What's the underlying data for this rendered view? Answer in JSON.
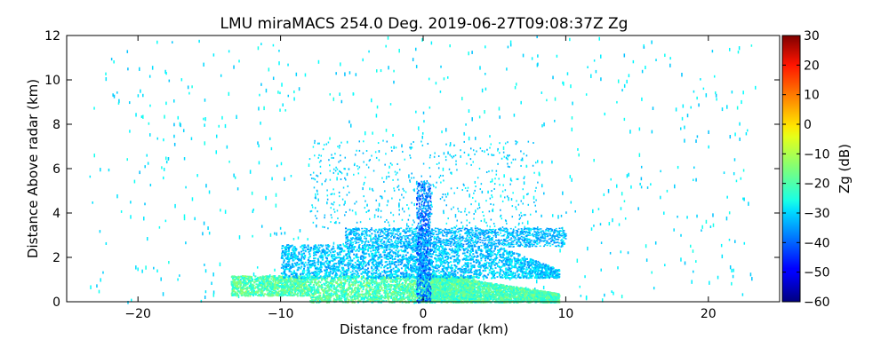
{
  "chart_data": {
    "type": "heatmap",
    "title": "LMU miraMACS 254.0 Deg. 2019-06-27T09:08:37Z  Zg",
    "xlabel": "Distance from radar (km)",
    "ylabel": "Distance Above radar  (km)",
    "xlim": [
      -25,
      25
    ],
    "ylim": [
      0,
      12
    ],
    "x_ticks": [
      -20,
      -10,
      0,
      10,
      20
    ],
    "y_ticks": [
      0,
      2,
      4,
      6,
      8,
      10,
      12
    ],
    "x_tick_labels": [
      "−20",
      "−10",
      "0",
      "10",
      "20"
    ],
    "y_tick_labels": [
      "0",
      "2",
      "4",
      "6",
      "8",
      "10",
      "12"
    ],
    "colorbar": {
      "label": "Zg (dB)",
      "colormap": "jet",
      "range": [
        -60,
        30
      ],
      "ticks": [
        30,
        20,
        10,
        0,
        -10,
        -20,
        -30,
        -40,
        -50,
        -60
      ],
      "tick_labels": [
        "30",
        "20",
        "10",
        "0",
        "−10",
        "−20",
        "−30",
        "−40",
        "−50",
        "−60"
      ]
    },
    "regions": [
      {
        "description": "dense low-level layer",
        "x_range": [
          -13.5,
          9.5
        ],
        "y_range": [
          0,
          1.2
        ],
        "zg_typical": -22
      },
      {
        "description": "mid layer",
        "x_range": [
          -10,
          9.5
        ],
        "y_range": [
          1.2,
          2.6
        ],
        "zg_typical": -30
      },
      {
        "description": "upper thin layer",
        "x_range": [
          -5.5,
          10
        ],
        "y_range": [
          2.6,
          3.4
        ],
        "zg_typical": -32
      },
      {
        "description": "sparse noise",
        "x_range": [
          -23.5,
          23.5
        ],
        "y_range": [
          0,
          12
        ],
        "zg_typical": -28
      }
    ],
    "grid": false,
    "legend": "colorbar-right"
  }
}
